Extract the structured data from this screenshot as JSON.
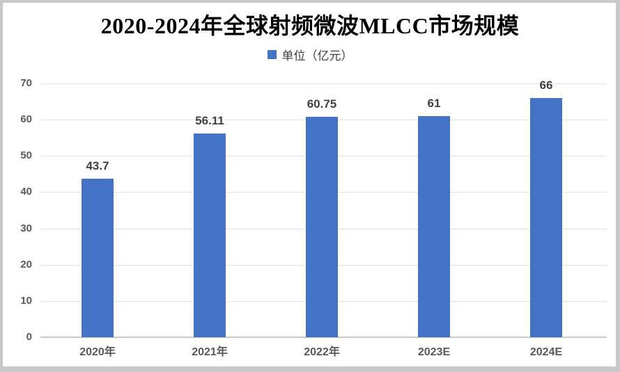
{
  "header": {
    "title": "2020-2024年全球射频微波MLCC市场规模",
    "legend_label": "单位（亿元）"
  },
  "chart_data": {
    "type": "bar",
    "title": "2020-2024年全球射频微波MLCC市场规模",
    "legend_entries": [
      "单位（亿元）"
    ],
    "legend_position": "top-center",
    "categories": [
      "2020年",
      "2021年",
      "2022年",
      "2023E",
      "2024E"
    ],
    "values": [
      43.7,
      56.11,
      60.75,
      61,
      66
    ],
    "data_labels": [
      "43.7",
      "56.11",
      "60.75",
      "61",
      "66"
    ],
    "xlabel": "",
    "ylabel": "",
    "ylim": [
      0,
      70
    ],
    "yticks": [
      0,
      10,
      20,
      30,
      40,
      50,
      60,
      70
    ],
    "grid": "horizontal"
  },
  "colors": {
    "bar": "#4472C4",
    "gridline": "#e2e2e2",
    "axis_line": "#c8c8c8",
    "tick_label": "#595959",
    "data_label": "#404040",
    "title": "#000000",
    "legend_text": "#404040",
    "frame_border": "#c9c9c9",
    "canvas_background": "#ffffff"
  }
}
